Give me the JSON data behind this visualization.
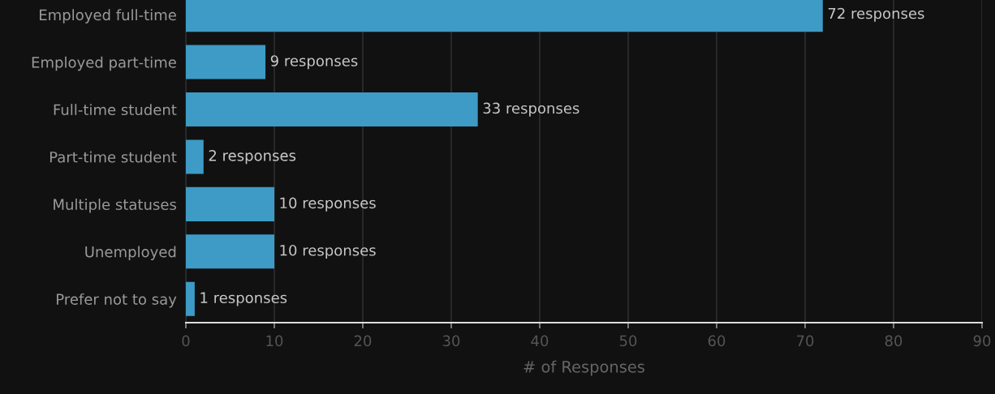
{
  "chart_data": {
    "type": "bar",
    "orientation": "horizontal",
    "xlabel": "# of Responses",
    "categories": [
      "Employed full-time",
      "Employed part-time",
      "Full-time student",
      "Part-time student",
      "Multiple statuses",
      "Unemployed",
      "Prefer not to say"
    ],
    "values": [
      72,
      9,
      33,
      2,
      10,
      10,
      1
    ],
    "value_labels": [
      "72 responses",
      "9 responses",
      "33 responses",
      "2 responses",
      "10 responses",
      "10 responses",
      "1 responses"
    ],
    "color": "#3d9bc6",
    "xlim": [
      0,
      90
    ],
    "xticks": [
      0,
      10,
      20,
      30,
      40,
      50,
      60,
      70,
      80,
      90
    ],
    "grid": "x"
  }
}
